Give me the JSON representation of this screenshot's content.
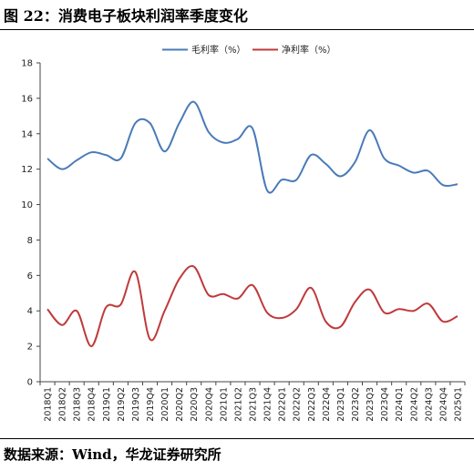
{
  "figure": {
    "title": "图 22：消费电子板块利润率季度变化",
    "source": "数据来源：Wind，华龙证券研究所"
  },
  "chart_data": {
    "type": "line",
    "categories": [
      "2018Q1",
      "2018Q2",
      "2018Q3",
      "2018Q4",
      "2019Q1",
      "2019Q2",
      "2019Q3",
      "2019Q4",
      "2020Q1",
      "2020Q2",
      "2020Q3",
      "2020Q4",
      "2021Q1",
      "2021Q2",
      "2021Q3",
      "2021Q4",
      "2022Q1",
      "2022Q2",
      "2022Q3",
      "2022Q4",
      "2023Q1",
      "2023Q2",
      "2023Q3",
      "2023Q4",
      "2024Q1",
      "2024Q2",
      "2024Q3",
      "2024Q4",
      "2025Q1"
    ],
    "series": [
      {
        "name": "毛利率（%）",
        "color": "#4a7ab8",
        "values": [
          12.6,
          12.0,
          12.5,
          12.95,
          12.8,
          12.6,
          14.6,
          14.6,
          13.0,
          14.6,
          15.8,
          14.1,
          13.5,
          13.7,
          14.3,
          10.8,
          11.4,
          11.4,
          12.8,
          12.3,
          11.6,
          12.4,
          14.2,
          12.6,
          12.2,
          11.8,
          11.9,
          11.1,
          11.15
        ]
      },
      {
        "name": "净利率（%）",
        "color": "#c0393b",
        "values": [
          4.1,
          3.2,
          4.0,
          2.0,
          4.2,
          4.35,
          6.2,
          2.4,
          4.0,
          5.8,
          6.5,
          4.9,
          4.95,
          4.7,
          5.45,
          3.9,
          3.6,
          4.1,
          5.3,
          3.4,
          3.1,
          4.5,
          5.2,
          3.9,
          4.1,
          4.0,
          4.4,
          3.4,
          3.7
        ]
      }
    ],
    "ylim": [
      0,
      18
    ],
    "yticks": [
      0,
      2,
      4,
      6,
      8,
      10,
      12,
      14,
      16,
      18
    ],
    "legend": "top-center",
    "grid": false
  }
}
